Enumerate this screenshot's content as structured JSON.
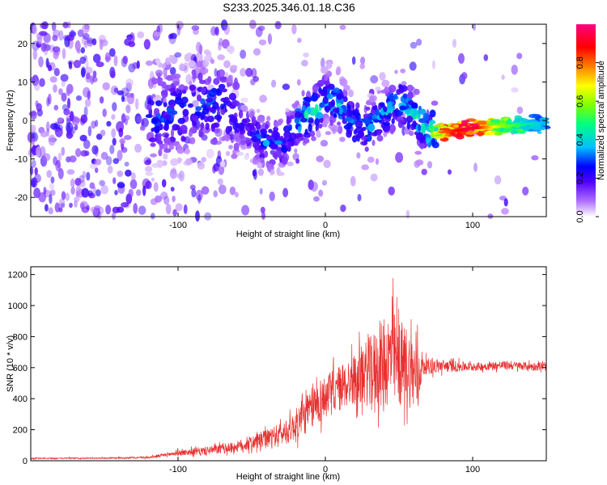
{
  "chart_data": [
    {
      "type": "heatmap",
      "title": "S233.2025.346.01.18.C36",
      "xlabel": "Height of straight line (km)",
      "ylabel": "Frequency (Hz)",
      "xlim": [
        -200,
        150
      ],
      "ylim": [
        -25,
        25
      ],
      "xticks": [
        "-100",
        "0",
        "100"
      ],
      "yticks": [
        "-20",
        "-10",
        "0",
        "10",
        "20"
      ],
      "colorbar": {
        "label": "Normalized spectral amplitude",
        "range": [
          0.0,
          1.0
        ],
        "ticks": [
          "0.0",
          "0.2",
          "0.4",
          "0.6",
          "0.8"
        ],
        "colors": [
          "#ffffff",
          "#8000ff",
          "#0000ff",
          "#00c8ff",
          "#00ff80",
          "#80ff00",
          "#ffff00",
          "#ff8000",
          "#ff0000",
          "#ff0080"
        ]
      },
      "ridge": {
        "description_x": [
          -200,
          -150,
          -110,
          -90,
          -70,
          -55,
          -40,
          -28,
          -18,
          -8,
          0,
          8,
          18,
          28,
          40,
          50,
          60,
          70,
          80,
          100,
          120,
          150
        ],
        "frequency_y": [
          0,
          0,
          1,
          3,
          5,
          -2,
          -6,
          -6,
          0,
          2,
          6,
          5,
          -1,
          -2,
          2,
          5,
          2,
          -3,
          -3,
          -2,
          -1.5,
          -0.5
        ],
        "amplitude": [
          0.1,
          0.12,
          0.3,
          0.28,
          0.3,
          0.22,
          0.35,
          0.3,
          0.45,
          0.5,
          0.4,
          0.45,
          0.35,
          0.4,
          0.38,
          0.45,
          0.5,
          0.55,
          0.8,
          0.95,
          0.6,
          0.35
        ]
      }
    },
    {
      "type": "line",
      "title": "",
      "xlabel": "Height of straight line (km)",
      "ylabel": "SNR (10 * v/v)",
      "xlim": [
        -200,
        150
      ],
      "ylim": [
        0,
        1250
      ],
      "xticks": [
        "-100",
        "0",
        "100"
      ],
      "yticks": [
        "0",
        "200",
        "400",
        "600",
        "800",
        "1000",
        "1200"
      ],
      "color": "#e83030",
      "envelope_x": [
        -200,
        -150,
        -120,
        -100,
        -80,
        -60,
        -40,
        -25,
        -15,
        -5,
        5,
        20,
        30,
        40,
        45,
        50,
        55,
        62,
        66,
        80,
        100,
        120,
        150
      ],
      "envelope_upper": [
        22,
        24,
        30,
        80,
        110,
        150,
        240,
        320,
        480,
        620,
        680,
        800,
        950,
        1100,
        1230,
        1050,
        1050,
        950,
        700,
        680,
        650,
        660,
        650
      ],
      "envelope_lower": [
        8,
        10,
        12,
        20,
        20,
        30,
        40,
        60,
        80,
        140,
        200,
        250,
        200,
        150,
        120,
        150,
        200,
        120,
        520,
        540,
        560,
        570,
        560
      ]
    }
  ]
}
